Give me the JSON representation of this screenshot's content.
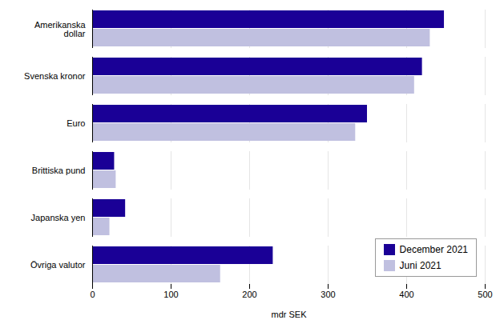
{
  "chart_data": {
    "type": "bar",
    "orientation": "horizontal",
    "categories": [
      "Amerikanska\ndollar",
      "Svenska kronor",
      "Euro",
      "Brittiska pund",
      "Japanska yen",
      "Övriga valutor"
    ],
    "series": [
      {
        "name": "December 2021",
        "color": "#1a0096",
        "values": [
          448,
          420,
          350,
          28,
          42,
          230
        ]
      },
      {
        "name": "Juni 2021",
        "color": "#c0c0e0",
        "values": [
          430,
          410,
          335,
          30,
          22,
          163
        ]
      }
    ],
    "xlabel": "mdr SEK",
    "xlim": [
      0,
      500
    ],
    "xticks": [
      0,
      100,
      200,
      300,
      400,
      500
    ],
    "grid": true,
    "legend": "lower right"
  }
}
